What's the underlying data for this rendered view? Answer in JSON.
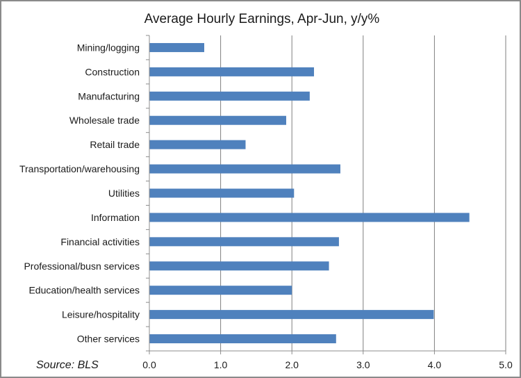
{
  "chart_data": {
    "type": "bar",
    "orientation": "horizontal",
    "title": "Average Hourly Earnings, Apr-Jun, y/y%",
    "source": "Source: BLS",
    "categories": [
      "Mining/logging",
      "Construction",
      "Manufacturing",
      "Wholesale trade",
      "Retail trade",
      "Transportation/warehousing",
      "Utilities",
      "Information",
      "Financial activities",
      "Professional/busn services",
      "Education/health services",
      "Leisure/hospitality",
      "Other services"
    ],
    "values": [
      0.77,
      2.31,
      2.25,
      1.92,
      1.35,
      2.68,
      2.03,
      4.49,
      2.66,
      2.52,
      2.0,
      3.99,
      2.62
    ],
    "xlim": [
      0,
      5
    ],
    "xticks": [
      "0.0",
      "1.0",
      "2.0",
      "3.0",
      "4.0",
      "5.0"
    ],
    "grid": "vertical",
    "legend": "none",
    "bar_color": "#4f81bd",
    "grid_color": "#7f7f7f",
    "axis_color": "#8c8c8c"
  }
}
